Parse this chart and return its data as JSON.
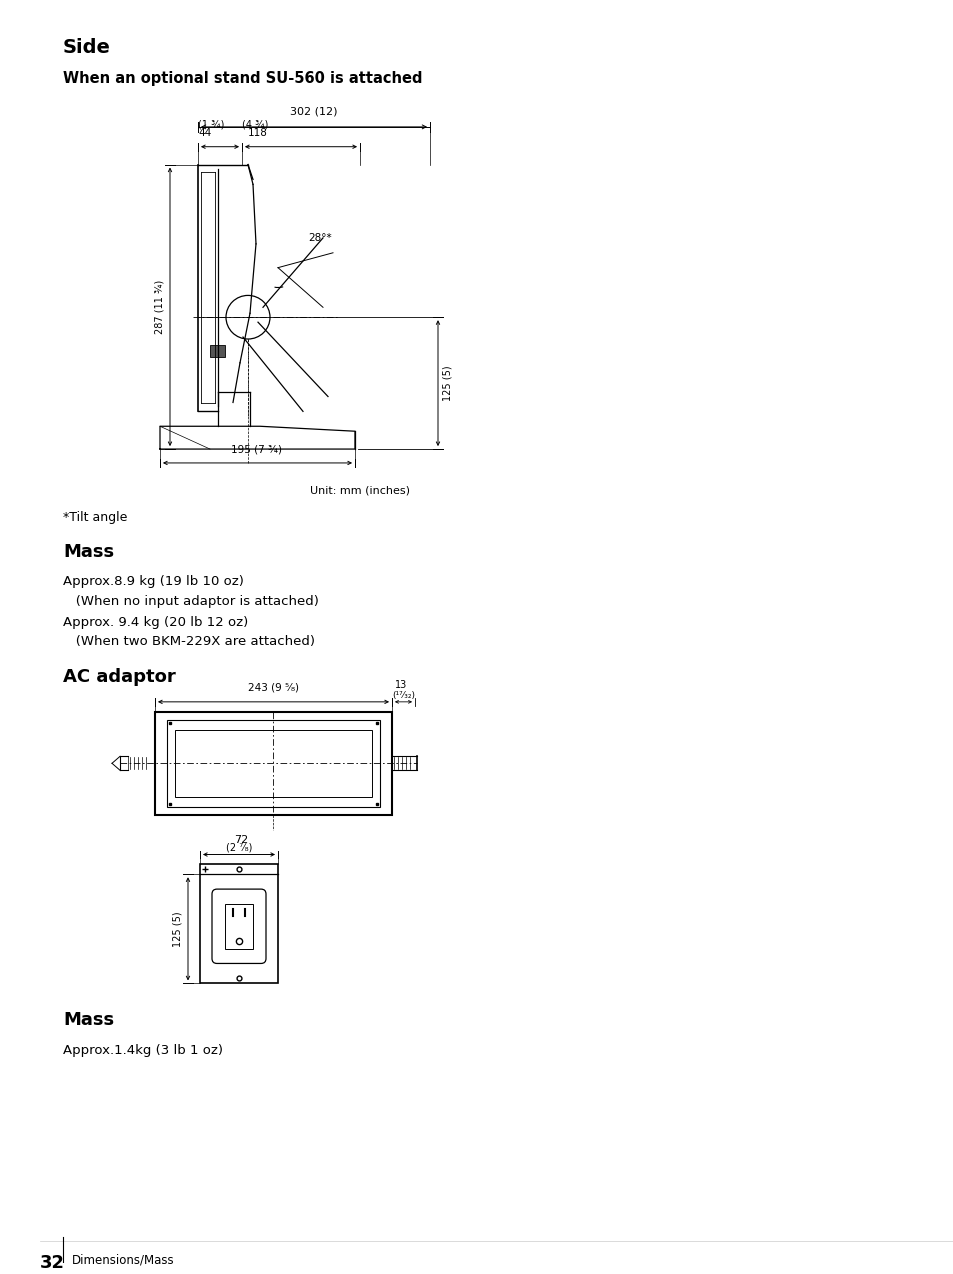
{
  "bg_color": "#ffffff",
  "page_num": "32",
  "page_footer": "Dimensions/Mass",
  "section1_title": "Side",
  "section1_subtitle": "When an optional stand SU-560 is attached",
  "unit_label": "Unit: mm (inches)",
  "tilt_note": "*Tilt angle",
  "mass_title1": "Mass",
  "mass_line1": "Approx.8.9 kg (19 lb 10 oz)",
  "mass_line2": "   (When no input adaptor is attached)",
  "mass_line3": "Approx. 9.4 kg (20 lb 12 oz)",
  "mass_line4": "   (When two BKM-229X are attached)",
  "ac_title": "AC adaptor",
  "mass_title2": "Mass",
  "mass_line5": "Approx.1.4kg (3 lb 1 oz)",
  "dim_302_label": "302 (12)",
  "dim_44_label": "44",
  "dim_44_sub": "(1 ¾)",
  "dim_118_label": "118",
  "dim_118_sub": "(4 ¾)",
  "dim_287_label": "287 (11 ¾)",
  "dim_125_label": "125 (5)",
  "dim_195_label": "195 (7 ¾)",
  "dim_28_label": "28°*",
  "dim_243_label": "243 (9 ⁵⁄₈)",
  "dim_13_label": "13",
  "dim_1732_label": "(¹⁷⁄₃₂)",
  "dim_72_label": "72",
  "dim_278_label": "(2 ⁷⁄₈)",
  "dim_125b_label": "125 (5)"
}
